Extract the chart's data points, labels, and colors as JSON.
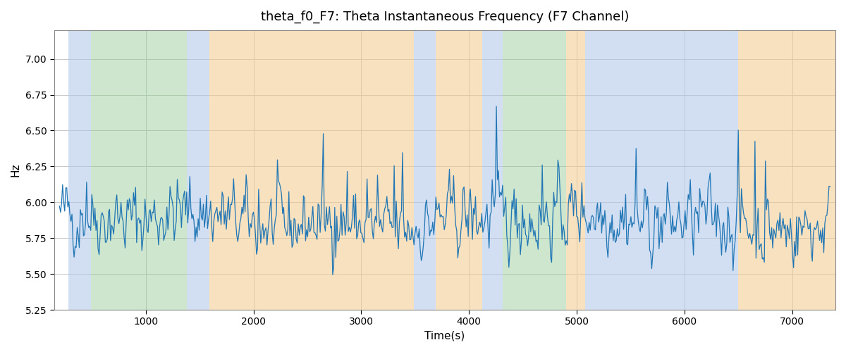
{
  "title": "theta_f0_F7: Theta Instantaneous Frequency (F7 Channel)",
  "xlabel": "Time(s)",
  "ylabel": "Hz",
  "xlim": [
    150,
    7400
  ],
  "ylim": [
    5.25,
    7.2
  ],
  "yticks": [
    5.25,
    5.5,
    5.75,
    6.0,
    6.25,
    6.5,
    6.75,
    7.0
  ],
  "xticks": [
    1000,
    2000,
    3000,
    4000,
    5000,
    6000,
    7000
  ],
  "line_color": "#2176b5",
  "line_width": 0.9,
  "background_color": "#ffffff",
  "grid_color": "#c8c8c8",
  "colored_bands": [
    {
      "xmin": 280,
      "xmax": 490,
      "color": "#aec6e8",
      "alpha": 0.55
    },
    {
      "xmin": 490,
      "xmax": 1380,
      "color": "#90c990",
      "alpha": 0.45
    },
    {
      "xmin": 1380,
      "xmax": 1590,
      "color": "#aec6e8",
      "alpha": 0.55
    },
    {
      "xmin": 1590,
      "xmax": 3490,
      "color": "#f4c98a",
      "alpha": 0.55
    },
    {
      "xmin": 3490,
      "xmax": 3690,
      "color": "#aec6e8",
      "alpha": 0.55
    },
    {
      "xmin": 3690,
      "xmax": 4120,
      "color": "#f4c98a",
      "alpha": 0.55
    },
    {
      "xmin": 4120,
      "xmax": 4310,
      "color": "#aec6e8",
      "alpha": 0.55
    },
    {
      "xmin": 4310,
      "xmax": 4900,
      "color": "#90c990",
      "alpha": 0.45
    },
    {
      "xmin": 4900,
      "xmax": 5080,
      "color": "#f4c98a",
      "alpha": 0.55
    },
    {
      "xmin": 5080,
      "xmax": 5280,
      "color": "#aec6e8",
      "alpha": 0.55
    },
    {
      "xmin": 5280,
      "xmax": 6500,
      "color": "#aec6e8",
      "alpha": 0.55
    },
    {
      "xmin": 6500,
      "xmax": 7400,
      "color": "#f4c98a",
      "alpha": 0.55
    }
  ],
  "seed": 42,
  "n_points": 740,
  "base_freq": 5.87,
  "noise_std": 0.13,
  "spike_scale": 0.55,
  "figsize": [
    12,
    5
  ],
  "dpi": 100
}
